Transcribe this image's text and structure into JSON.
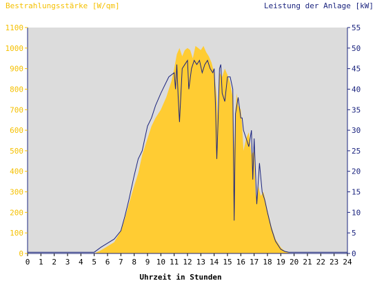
{
  "chart_data": {
    "type": "area",
    "title_left": "Bestrahlungsstärke [W/qm]",
    "title_right": "Leistung der Anlage [kW]",
    "xlabel": "Uhrzeit in Stunden",
    "xlim": [
      0,
      24
    ],
    "x_ticks": [
      "0",
      "1",
      "2",
      "3",
      "4",
      "5",
      "6",
      "7",
      "8",
      "9",
      "10",
      "11",
      "12",
      "13",
      "14",
      "15",
      "16",
      "17",
      "18",
      "19",
      "20",
      "21",
      "22",
      "23",
      "24"
    ],
    "ylim_left": [
      0,
      1100
    ],
    "y_ticks_left": [
      "0",
      "100",
      "200",
      "300",
      "400",
      "500",
      "600",
      "700",
      "800",
      "900",
      "1000",
      "1100"
    ],
    "ylim_right": [
      0,
      55
    ],
    "y_ticks_right": [
      "0",
      "5",
      "10",
      "15",
      "20",
      "25",
      "30",
      "35",
      "40",
      "45",
      "50",
      "55"
    ],
    "grid": false,
    "colors": {
      "background": "#ffffff",
      "plot_area": "#dcdcdc",
      "irradiance_fill": "#ffcc33",
      "power_line": "#1a237e",
      "left_axis_text": "#f5c000",
      "right_axis_text": "#1a237e",
      "axis_text": "#000000"
    },
    "series": [
      {
        "name": "Bestrahlungsstärke [W/qm]",
        "axis": "left",
        "style": "area",
        "x": [
          0,
          5.0,
          5.5,
          6.0,
          6.5,
          7.0,
          7.3,
          7.6,
          8.0,
          8.3,
          8.6,
          9.0,
          9.3,
          9.6,
          10.0,
          10.4,
          10.8,
          11.0,
          11.2,
          11.4,
          11.6,
          11.8,
          12.0,
          12.2,
          12.4,
          12.6,
          12.8,
          13.0,
          13.2,
          13.4,
          13.6,
          13.8,
          14.0,
          14.1,
          14.2,
          14.3,
          14.4,
          14.6,
          14.8,
          15.0,
          15.2,
          15.4,
          15.5,
          15.6,
          15.7,
          15.8,
          16.0,
          16.1,
          16.2,
          16.4,
          16.6,
          16.8,
          17.0,
          17.1,
          17.2,
          17.3,
          17.5,
          17.7,
          18.0,
          18.3,
          18.6,
          19.0,
          19.3,
          19.6,
          20.0,
          24
        ],
        "values": [
          0,
          0,
          15,
          35,
          55,
          110,
          170,
          240,
          330,
          390,
          480,
          560,
          620,
          660,
          700,
          760,
          840,
          900,
          970,
          1000,
          960,
          990,
          1000,
          990,
          950,
          1010,
          1000,
          990,
          1010,
          980,
          960,
          930,
          880,
          820,
          760,
          640,
          880,
          860,
          900,
          870,
          830,
          760,
          500,
          700,
          780,
          720,
          700,
          620,
          500,
          560,
          590,
          480,
          500,
          300,
          250,
          330,
          280,
          300,
          210,
          130,
          70,
          30,
          10,
          3,
          0,
          0
        ]
      },
      {
        "name": "Leistung der Anlage [kW]",
        "axis": "right",
        "style": "line",
        "x": [
          0,
          5.0,
          5.5,
          6.0,
          6.5,
          7.0,
          7.3,
          7.6,
          8.0,
          8.3,
          8.6,
          8.8,
          9.0,
          9.3,
          9.6,
          10.0,
          10.3,
          10.6,
          11.0,
          11.1,
          11.2,
          11.3,
          11.4,
          11.6,
          11.8,
          12.0,
          12.1,
          12.3,
          12.5,
          12.7,
          12.9,
          13.1,
          13.3,
          13.5,
          13.7,
          13.9,
          14.0,
          14.1,
          14.2,
          14.3,
          14.4,
          14.5,
          14.6,
          14.8,
          15.0,
          15.2,
          15.4,
          15.5,
          15.6,
          15.8,
          16.0,
          16.1,
          16.2,
          16.4,
          16.6,
          16.8,
          16.9,
          17.0,
          17.1,
          17.2,
          17.4,
          17.6,
          17.8,
          18.0,
          18.3,
          18.6,
          19.0,
          19.3,
          19.6,
          20.0,
          24
        ],
        "values": [
          0.3,
          0.3,
          1.5,
          2.5,
          3.5,
          5.5,
          9,
          13,
          19,
          23,
          25,
          28,
          31,
          33,
          36,
          39,
          41,
          43,
          44,
          40,
          46,
          38,
          32,
          45,
          46,
          47,
          40,
          45,
          47,
          46,
          47,
          44,
          46,
          47,
          45,
          44,
          45,
          36,
          23,
          33,
          45,
          46,
          39,
          37,
          43,
          43,
          40,
          8,
          34,
          38,
          33,
          33,
          30,
          28,
          26,
          30,
          18,
          28,
          20,
          12,
          22,
          15,
          13,
          10,
          6,
          3,
          1,
          0.5,
          0.3,
          0.3,
          0.3
        ]
      }
    ]
  }
}
